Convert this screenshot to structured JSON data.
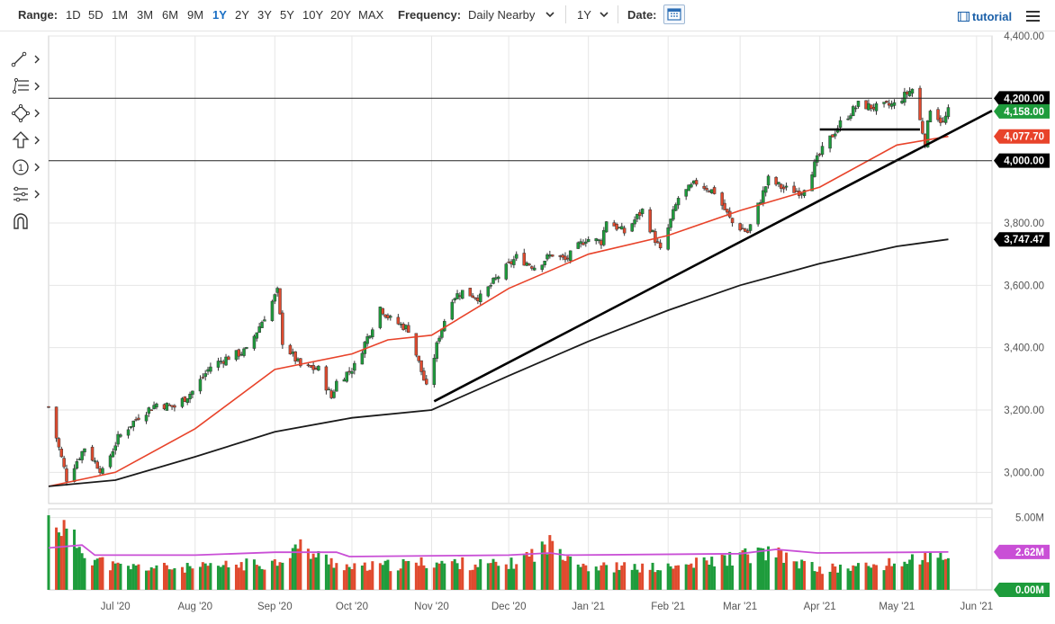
{
  "toolbar": {
    "range_label": "Range:",
    "ranges": [
      "1D",
      "5D",
      "1M",
      "3M",
      "6M",
      "9M",
      "1Y",
      "2Y",
      "3Y",
      "5Y",
      "10Y",
      "20Y",
      "MAX"
    ],
    "active_range": "1Y",
    "frequency_label": "Frequency:",
    "frequency_value": "Daily Nearby",
    "period_value": "1Y",
    "date_label": "Date:",
    "tutorial_label": "tutorial"
  },
  "side_tools": [
    "line-tool-icon",
    "fib-tool-icon",
    "shape-tool-icon",
    "arrow-tool-icon",
    "annotation-tool-icon",
    "pattern-tool-icon",
    "magnet-icon"
  ],
  "side_tools_badge": "1",
  "colors": {
    "up": "#1e9c3c",
    "down": "#e04b2f",
    "ma50": "#e8432a",
    "ma200": "#1a1a1a",
    "volume_avg": "#c94fd6",
    "accent": "#1a6fc4"
  },
  "chart_data": [
    {
      "type": "candlestick",
      "price_axis": {
        "ylim": [
          2900,
          4400
        ],
        "ticks": [
          "4,400.00",
          "3,800.00",
          "3,600.00",
          "3,400.00",
          "3,200.00",
          "3,000.00"
        ],
        "tick_values": [
          4400,
          3800,
          3600,
          3400,
          3200,
          3000
        ]
      },
      "x_axis": {
        "ticks": [
          "Jul '20",
          "Aug '20",
          "Sep '20",
          "Oct '20",
          "Nov '20",
          "Dec '20",
          "Jan '21",
          "Feb '21",
          "Mar '21",
          "Apr '21",
          "May '21",
          "Jun '21"
        ],
        "tick_dates": [
          "2020-07-01",
          "2020-08-01",
          "2020-09-01",
          "2020-10-01",
          "2020-11-01",
          "2020-12-01",
          "2021-01-01",
          "2021-02-01",
          "2021-03-01",
          "2021-04-01",
          "2021-05-01",
          "2021-06-01"
        ],
        "xlim": [
          "2020-06-05",
          "2021-06-07"
        ]
      },
      "close_anchors": [
        [
          "2020-06-05",
          3210
        ],
        [
          "2020-06-12",
          2980
        ],
        [
          "2020-06-19",
          3080
        ],
        [
          "2020-06-26",
          3000
        ],
        [
          "2020-07-02",
          3110
        ],
        [
          "2020-07-10",
          3180
        ],
        [
          "2020-07-17",
          3220
        ],
        [
          "2020-07-24",
          3210
        ],
        [
          "2020-07-31",
          3260
        ],
        [
          "2020-08-07",
          3340
        ],
        [
          "2020-08-14",
          3370
        ],
        [
          "2020-08-21",
          3390
        ],
        [
          "2020-08-28",
          3500
        ],
        [
          "2020-09-02",
          3580
        ],
        [
          "2020-09-04",
          3420
        ],
        [
          "2020-09-11",
          3340
        ],
        [
          "2020-09-18",
          3330
        ],
        [
          "2020-09-23",
          3240
        ],
        [
          "2020-09-25",
          3290
        ],
        [
          "2020-10-02",
          3340
        ],
        [
          "2020-10-09",
          3470
        ],
        [
          "2020-10-12",
          3530
        ],
        [
          "2020-10-16",
          3490
        ],
        [
          "2020-10-23",
          3460
        ],
        [
          "2020-10-30",
          3270
        ],
        [
          "2020-11-04",
          3440
        ],
        [
          "2020-11-09",
          3560
        ],
        [
          "2020-11-13",
          3580
        ],
        [
          "2020-11-20",
          3560
        ],
        [
          "2020-11-27",
          3630
        ],
        [
          "2020-12-04",
          3690
        ],
        [
          "2020-12-11",
          3660
        ],
        [
          "2020-12-18",
          3700
        ],
        [
          "2020-12-23",
          3680
        ],
        [
          "2020-12-31",
          3750
        ],
        [
          "2021-01-06",
          3740
        ],
        [
          "2021-01-08",
          3810
        ],
        [
          "2021-01-15",
          3770
        ],
        [
          "2021-01-22",
          3840
        ],
        [
          "2021-01-29",
          3710
        ],
        [
          "2021-02-05",
          3880
        ],
        [
          "2021-02-12",
          3930
        ],
        [
          "2021-02-19",
          3900
        ],
        [
          "2021-02-26",
          3800
        ],
        [
          "2021-03-04",
          3770
        ],
        [
          "2021-03-12",
          3940
        ],
        [
          "2021-03-18",
          3910
        ],
        [
          "2021-03-25",
          3900
        ],
        [
          "2021-04-01",
          4020
        ],
        [
          "2021-04-09",
          4120
        ],
        [
          "2021-04-16",
          4180
        ],
        [
          "2021-04-23",
          4170
        ],
        [
          "2021-04-30",
          4180
        ],
        [
          "2021-05-07",
          4230
        ],
        [
          "2021-05-12",
          4060
        ],
        [
          "2021-05-14",
          4170
        ],
        [
          "2021-05-19",
          4120
        ],
        [
          "2021-05-21",
          4158
        ]
      ],
      "overlays": [
        {
          "name": "ma50",
          "values": [
            [
              "2020-06-05",
              2955
            ],
            [
              "2020-07-01",
              3000
            ],
            [
              "2020-08-01",
              3140
            ],
            [
              "2020-09-01",
              3330
            ],
            [
              "2020-10-01",
              3380
            ],
            [
              "2020-10-15",
              3425
            ],
            [
              "2020-11-01",
              3440
            ],
            [
              "2020-12-01",
              3590
            ],
            [
              "2021-01-01",
              3700
            ],
            [
              "2021-02-01",
              3760
            ],
            [
              "2021-03-01",
              3840
            ],
            [
              "2021-04-01",
              3915
            ],
            [
              "2021-05-01",
              4050
            ],
            [
              "2021-05-21",
              4077.7
            ]
          ]
        },
        {
          "name": "ma200",
          "values": [
            [
              "2020-06-05",
              2955
            ],
            [
              "2020-07-01",
              2975
            ],
            [
              "2020-08-01",
              3050
            ],
            [
              "2020-09-01",
              3130
            ],
            [
              "2020-10-01",
              3175
            ],
            [
              "2020-11-01",
              3200
            ],
            [
              "2020-12-01",
              3310
            ],
            [
              "2021-01-01",
              3420
            ],
            [
              "2021-02-01",
              3520
            ],
            [
              "2021-03-01",
              3600
            ],
            [
              "2021-04-01",
              3670
            ],
            [
              "2021-05-01",
              3725
            ],
            [
              "2021-05-21",
              3747.47
            ]
          ]
        },
        {
          "name": "trendline",
          "values": [
            [
              "2020-11-02",
              3228
            ],
            [
              "2021-06-07",
              4160
            ]
          ]
        },
        {
          "name": "hline-4200",
          "values": [
            [
              "2020-06-05",
              4200
            ],
            [
              "2021-06-07",
              4200
            ]
          ]
        },
        {
          "name": "hline-4000",
          "values": [
            [
              "2020-06-05",
              4000
            ],
            [
              "2021-06-07",
              4000
            ]
          ]
        },
        {
          "name": "box-line",
          "values": [
            [
              "2021-04-01",
              4100
            ],
            [
              "2021-05-10",
              4100
            ]
          ]
        }
      ],
      "price_labels": [
        {
          "text": "4,200.00",
          "value": 4200,
          "color": "#000000"
        },
        {
          "text": "4,158.00",
          "value": 4158,
          "color": "#1e9c3c"
        },
        {
          "text": "4,077.70",
          "value": 4077.7,
          "color": "#e8432a"
        },
        {
          "text": "4,000.00",
          "value": 4000,
          "color": "#000000"
        },
        {
          "text": "3,747.47",
          "value": 3747.47,
          "color": "#000000"
        }
      ]
    },
    {
      "type": "bar",
      "ylim": [
        0,
        5.6
      ],
      "ticks": [
        "5.00M"
      ],
      "tick_values": [
        5.0
      ],
      "avg_label": {
        "text": "2.62M",
        "value": 2.62,
        "color": "#c94fd6"
      },
      "zero_label": {
        "text": "0.00M",
        "value": 0,
        "color": "#1e9c3c"
      },
      "volume_anchors": [
        [
          "2020-06-08",
          4.8
        ],
        [
          "2020-06-15",
          3.4
        ],
        [
          "2020-06-22",
          2.2
        ],
        [
          "2020-07-01",
          1.6
        ],
        [
          "2020-08-01",
          1.5
        ],
        [
          "2020-09-01",
          1.9
        ],
        [
          "2020-09-10",
          3.0
        ],
        [
          "2020-09-18",
          2.3
        ],
        [
          "2020-10-01",
          1.5
        ],
        [
          "2020-11-01",
          1.9
        ],
        [
          "2020-12-01",
          1.7
        ],
        [
          "2020-12-18",
          3.2
        ],
        [
          "2021-01-01",
          1.6
        ],
        [
          "2021-02-01",
          1.5
        ],
        [
          "2021-03-01",
          2.3
        ],
        [
          "2021-03-12",
          2.6
        ],
        [
          "2021-04-01",
          1.4
        ],
        [
          "2021-05-01",
          1.8
        ],
        [
          "2021-05-12",
          2.3
        ],
        [
          "2021-05-21",
          2.0
        ]
      ],
      "avg_anchors": [
        [
          "2020-06-05",
          2.9
        ],
        [
          "2020-06-18",
          3.1
        ],
        [
          "2020-06-23",
          2.4
        ],
        [
          "2020-08-01",
          2.4
        ],
        [
          "2020-09-01",
          2.6
        ],
        [
          "2020-09-25",
          2.6
        ],
        [
          "2020-09-30",
          2.3
        ],
        [
          "2020-12-01",
          2.4
        ],
        [
          "2020-12-17",
          2.55
        ],
        [
          "2020-12-23",
          2.4
        ],
        [
          "2021-03-01",
          2.5
        ],
        [
          "2021-03-15",
          2.8
        ],
        [
          "2021-03-31",
          2.55
        ],
        [
          "2021-05-21",
          2.62
        ]
      ]
    }
  ]
}
